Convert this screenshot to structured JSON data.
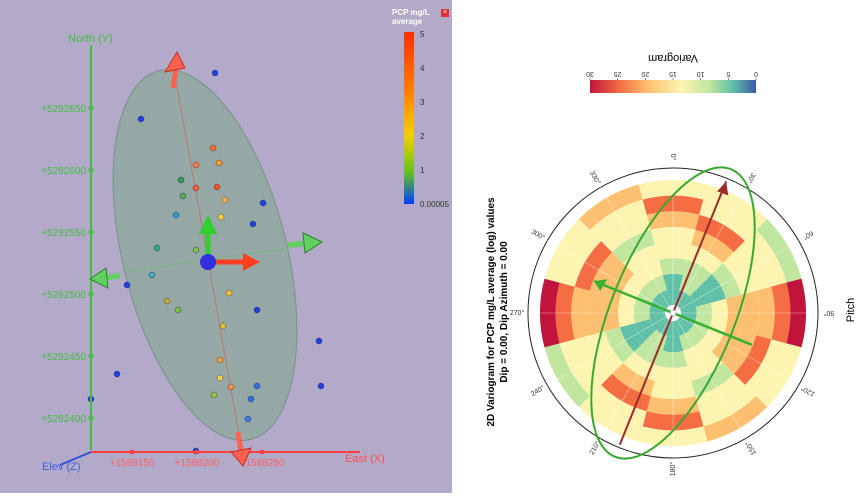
{
  "chart_data": [
    {
      "type": "scatter",
      "panel": "3d-ellipsoid-view",
      "axis_labels": {
        "north": "North (Y)",
        "east": "East (X)",
        "elev": "Elev (Z)"
      },
      "north_ticks": [
        "+5292650",
        "+5292600",
        "+5292550",
        "+5292500",
        "+5292450",
        "+5292400"
      ],
      "east_ticks": [
        "+1588150",
        "+1588200",
        "+1588250"
      ],
      "colorbar": {
        "title": "PCP mg/L average",
        "tick_labels": [
          "5",
          "4",
          "3",
          "2",
          "1",
          "0.00005"
        ],
        "colors": [
          "#ff3000",
          "#ff8000",
          "#f4d000",
          "#60c020",
          "#0040ff"
        ]
      },
      "background": "#b3a9c9",
      "ellipsoid_color": "#8fa8a0",
      "axis_color": "#40c040",
      "east_axis_color": "#ff4040"
    },
    {
      "type": "heatmap",
      "panel": "polar-variogram",
      "title_lines": [
        "2D Variogram for PCP mg/L average (log) values",
        "Dip = 0.00, Dip Azimuth = 0.00"
      ],
      "angle_label": "Pitch",
      "angle_ticks": [
        "0°",
        "30°",
        "60°",
        "90°",
        "120°",
        "150°",
        "180°",
        "210°",
        "240°",
        "270°",
        "300°",
        "330°"
      ],
      "colorbar": {
        "title": "Variogram",
        "tick_labels": [
          "30",
          "25",
          "20",
          "15",
          "10",
          "5",
          "0"
        ],
        "range": [
          0,
          30
        ],
        "colors": [
          "#c0143c",
          "#f46d43",
          "#fdc070",
          "#fcf4b0",
          "#c0e6a0",
          "#60c0a8",
          "#3b58a8"
        ]
      },
      "rings": 8,
      "sectors": 12,
      "values": [
        [
          4,
          6,
          10,
          14,
          17,
          20,
          25,
          15
        ],
        [
          5,
          9,
          12,
          17,
          21,
          24,
          17,
          13
        ],
        [
          5,
          3,
          7,
          11,
          14,
          17,
          15,
          12
        ],
        [
          4,
          9,
          14,
          20,
          18,
          22,
          26,
          29
        ],
        [
          5,
          9,
          14,
          19,
          22,
          25,
          17,
          15
        ],
        [
          4,
          8,
          13,
          17,
          11,
          14,
          16,
          18
        ],
        [
          4,
          6,
          10,
          14,
          17,
          20,
          25,
          15
        ],
        [
          5,
          9,
          12,
          17,
          21,
          24,
          17,
          13
        ],
        [
          5,
          3,
          7,
          11,
          14,
          17,
          15,
          12
        ],
        [
          4,
          9,
          14,
          20,
          18,
          22,
          26,
          29
        ],
        [
          5,
          9,
          14,
          19,
          22,
          25,
          17,
          15
        ],
        [
          4,
          8,
          13,
          17,
          11,
          14,
          16,
          18
        ]
      ],
      "major_axis_color": "#9b2a2a",
      "minor_axis_color": "#38b030",
      "ellipse_color": "#38a830"
    }
  ]
}
